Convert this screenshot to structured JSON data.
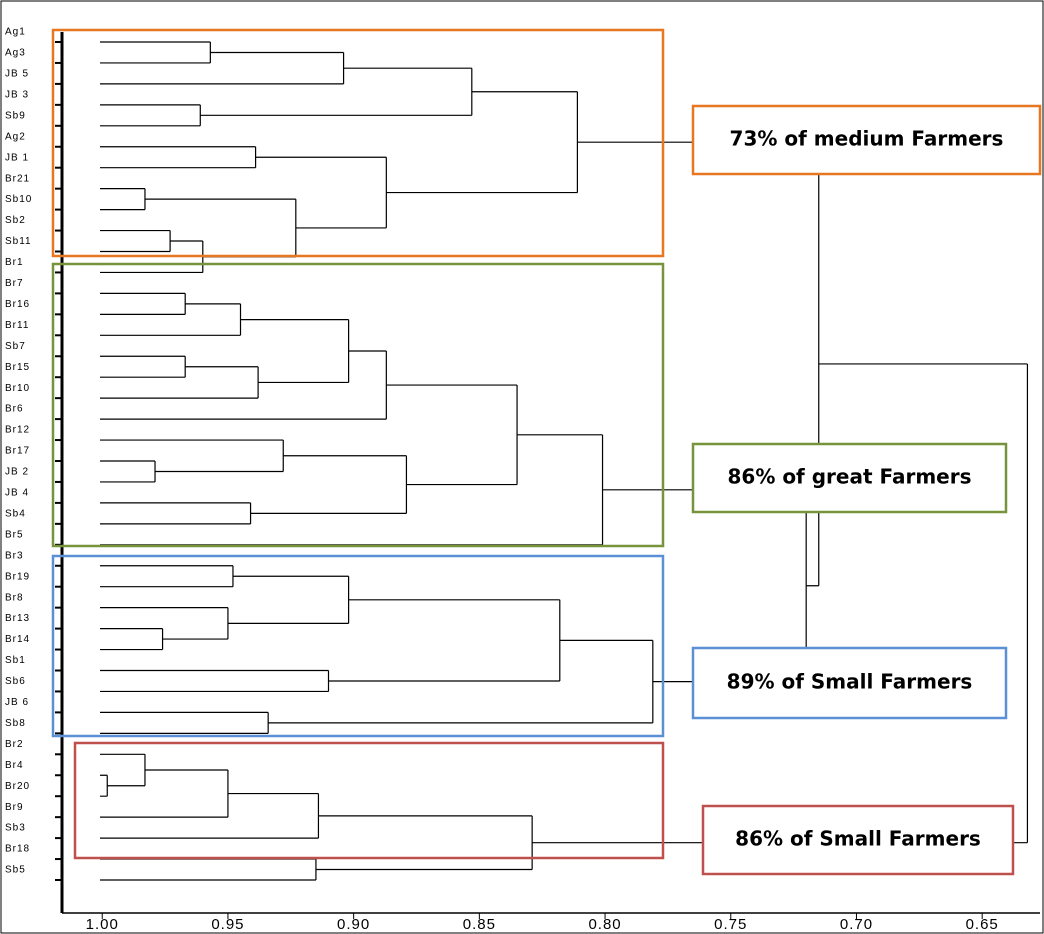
{
  "chart_data": {
    "type": "dendrogram",
    "xlim": [
      1.016,
      0.627
    ],
    "xticks": [
      {
        "value": 1,
        "label": "1.00"
      },
      0.95,
      {
        "value": 0.9,
        "label": "0.90"
      },
      0.85,
      {
        "value": 0.8,
        "label": "0.80"
      },
      0.75,
      {
        "value": 0.7,
        "label": "0.70"
      },
      0.65
    ],
    "tree": {
      "height": 0.632,
      "children": [
        {
          "height": 0.715,
          "children": [
            {
              "height": 0.811,
              "children": [
                {
                  "height": 0.853,
                  "children": [
                    {
                      "height": 0.904,
                      "children": [
                        {
                          "height": 0.957,
                          "children": [
                            "Ag1",
                            "Ag3"
                          ]
                        },
                        "JB 5"
                      ]
                    },
                    {
                      "height": 0.961,
                      "children": [
                        "JB 3",
                        "Sb9"
                      ]
                    }
                  ]
                },
                {
                  "height": 0.887,
                  "children": [
                    {
                      "height": 0.939,
                      "children": [
                        "Ag2",
                        "JB 1"
                      ]
                    },
                    {
                      "height": 0.923,
                      "children": [
                        {
                          "height": 0.983,
                          "children": [
                            "Br21",
                            "Sb10"
                          ]
                        },
                        {
                          "height": 0.96,
                          "children": [
                            {
                              "height": 0.973,
                              "children": [
                                "Sb2",
                                "Sb11"
                              ]
                            },
                            "Br1"
                          ]
                        }
                      ]
                    }
                  ]
                }
              ]
            },
            {
              "height": 0.72,
              "children": [
                {
                  "height": 0.801,
                  "children": [
                    {
                      "height": 0.835,
                      "children": [
                        {
                          "height": 0.887,
                          "children": [
                            {
                              "height": 0.902,
                              "children": [
                                {
                                  "height": 0.945,
                                  "children": [
                                    {
                                      "height": 0.967,
                                      "children": [
                                        "Br7",
                                        "Br16"
                                      ]
                                    },
                                    "Br11"
                                  ]
                                },
                                {
                                  "height": 0.938,
                                  "children": [
                                    {
                                      "height": 0.967,
                                      "children": [
                                        "Sb7",
                                        "Br15"
                                      ]
                                    },
                                    "Br10"
                                  ]
                                }
                              ]
                            },
                            "Br6"
                          ]
                        },
                        {
                          "height": 0.879,
                          "children": [
                            {
                              "height": 0.928,
                              "children": [
                                "Br12",
                                {
                                  "height": 0.979,
                                  "children": [
                                    "Br17",
                                    "JB 2"
                                  ]
                                }
                              ]
                            },
                            {
                              "height": 0.941,
                              "children": [
                                "JB 4",
                                "Sb4"
                              ]
                            }
                          ]
                        }
                      ]
                    },
                    "Br5"
                  ]
                },
                {
                  "height": 0.781,
                  "children": [
                    {
                      "height": 0.818,
                      "children": [
                        {
                          "height": 0.902,
                          "children": [
                            {
                              "height": 0.948,
                              "children": [
                                "Br3",
                                "Br19"
                              ]
                            },
                            {
                              "height": 0.95,
                              "children": [
                                "Br8",
                                {
                                  "height": 0.976,
                                  "children": [
                                    "Br13",
                                    "Br14"
                                  ]
                                }
                              ]
                            }
                          ]
                        },
                        {
                          "height": 0.91,
                          "children": [
                            "Sb1",
                            "Sb6"
                          ]
                        }
                      ]
                    },
                    {
                      "height": 0.934,
                      "children": [
                        "JB 6",
                        "Sb8"
                      ]
                    }
                  ]
                }
              ]
            }
          ]
        },
        {
          "height": 0.829,
          "children": [
            {
              "height": 0.914,
              "children": [
                {
                  "height": 0.95,
                  "children": [
                    {
                      "height": 0.983,
                      "children": [
                        "Br2",
                        {
                          "height": 0.998,
                          "children": [
                            "Br4",
                            "Br20"
                          ]
                        }
                      ]
                    },
                    "Br9"
                  ]
                },
                "Sb3"
              ]
            },
            {
              "height": 0.915,
              "children": [
                "Br18",
                "Sb5"
              ]
            }
          ]
        }
      ]
    },
    "annotations": [
      {
        "label": "73% of medium Farmers",
        "color": "#e87722"
      },
      {
        "label": "86% of great Farmers",
        "color": "#77933c"
      },
      {
        "label": "89% of Small Farmers",
        "color": "#5b8fd6"
      },
      {
        "label": "86% of Small Farmers",
        "color": "#c0504d"
      }
    ]
  }
}
